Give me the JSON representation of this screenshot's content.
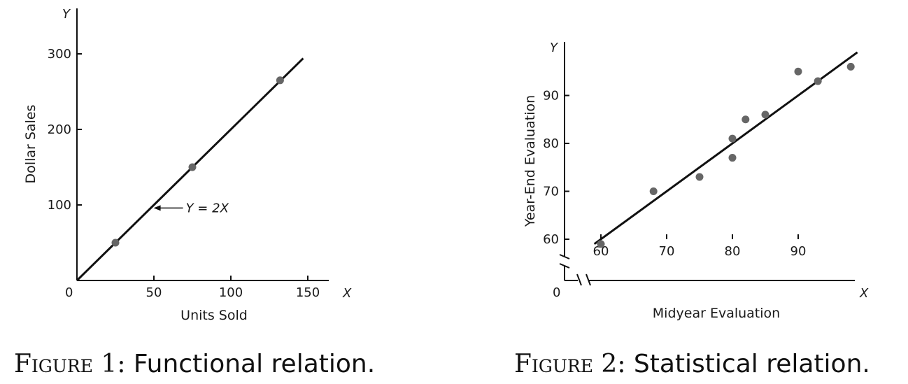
{
  "chart_data": [
    {
      "type": "line",
      "xlabel": "Units Sold",
      "ylabel": "Dollar Sales",
      "x_axis_letter": "X",
      "y_axis_letter": "Y",
      "origin_label": "0",
      "x_ticks": [
        50,
        100,
        150
      ],
      "y_ticks": [
        100,
        200,
        300
      ],
      "xlim": [
        0,
        150
      ],
      "ylim": [
        0,
        330
      ],
      "line": {
        "x": [
          0,
          147
        ],
        "y": [
          0,
          294
        ]
      },
      "points": {
        "x": [
          25,
          75,
          132
        ],
        "y": [
          50,
          150,
          265
        ]
      },
      "annotation": {
        "text": "Y = 2X",
        "x": 48,
        "y": 96
      },
      "caption_prefix": "Figure 1:",
      "caption": "Functional relation."
    },
    {
      "type": "scatter",
      "xlabel": "Midyear Evaluation",
      "ylabel": "Year-End Evaluation",
      "x_axis_letter": "X",
      "y_axis_letter": "Y",
      "origin_label": "0",
      "x_ticks": [
        60,
        70,
        80,
        90
      ],
      "y_ticks": [
        60,
        70,
        80,
        90
      ],
      "xlim": [
        58,
        100
      ],
      "ylim": [
        56,
        100
      ],
      "axis_break": true,
      "line": {
        "x": [
          59,
          99
        ],
        "y": [
          59,
          99
        ]
      },
      "points": {
        "x": [
          60,
          68,
          75,
          80,
          80,
          82,
          85,
          90,
          93,
          98
        ],
        "y": [
          59,
          70,
          73,
          81,
          77,
          85,
          86,
          95,
          93,
          96
        ]
      },
      "caption_prefix": "Figure 2:",
      "caption": "Statistical relation."
    }
  ]
}
